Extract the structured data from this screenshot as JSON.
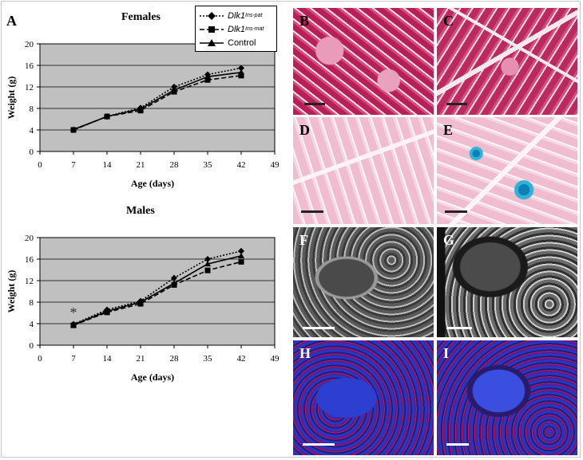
{
  "figure": {
    "panel_A_label": "A",
    "micrograph_labels": [
      "B",
      "C",
      "D",
      "E",
      "F",
      "G",
      "H",
      "I"
    ],
    "legend": {
      "pat_prefix": "Dlk1",
      "pat_sup": "Ins-pat",
      "mat_prefix": "Dlk1",
      "mat_sup": "Ins-mat",
      "control": "Control"
    },
    "colors": {
      "plot_bg": "#c0c0c0",
      "he_stain": "#c8306a",
      "pale_stain": "#f3c7d8",
      "blue_stain": "#19a9cf",
      "fluor_red": "#b8186a",
      "fluor_blue": "#2233c8"
    }
  },
  "chart_data": [
    {
      "type": "line",
      "title": "Females",
      "xlabel": "Age (days)",
      "ylabel": "Weight (g)",
      "xlim": [
        0,
        49
      ],
      "ylim": [
        0,
        20
      ],
      "xticks": [
        0,
        7,
        14,
        21,
        28,
        35,
        42,
        49
      ],
      "yticks": [
        0,
        4,
        8,
        12,
        16,
        20
      ],
      "grid": true,
      "x": [
        7,
        14,
        21,
        28,
        35,
        42
      ],
      "series": [
        {
          "name": "Dlk1 Ins-pat",
          "marker": "diamond",
          "dash": "dotted",
          "values": [
            4.0,
            6.5,
            8.1,
            12.0,
            14.3,
            15.5
          ]
        },
        {
          "name": "Dlk1 Ins-mat",
          "marker": "square",
          "dash": "dashed",
          "values": [
            4.0,
            6.5,
            7.6,
            11.1,
            13.3,
            14.1
          ]
        },
        {
          "name": "Control",
          "marker": "triangle",
          "dash": "solid",
          "values": [
            4.1,
            6.5,
            7.9,
            11.4,
            13.9,
            14.7
          ]
        }
      ],
      "annotations": []
    },
    {
      "type": "line",
      "title": "Males",
      "xlabel": "Age (days)",
      "ylabel": "Weight (g)",
      "xlim": [
        0,
        49
      ],
      "ylim": [
        0,
        20
      ],
      "xticks": [
        0,
        7,
        14,
        21,
        28,
        35,
        42,
        49
      ],
      "yticks": [
        0,
        4,
        8,
        12,
        16,
        20
      ],
      "grid": true,
      "x": [
        7,
        14,
        21,
        28,
        35,
        42
      ],
      "series": [
        {
          "name": "Dlk1 Ins-pat",
          "marker": "diamond",
          "dash": "dotted",
          "values": [
            3.9,
            6.6,
            8.2,
            12.5,
            16.0,
            17.5
          ]
        },
        {
          "name": "Dlk1 Ins-mat",
          "marker": "square",
          "dash": "dashed",
          "values": [
            3.7,
            6.1,
            7.7,
            11.2,
            13.9,
            15.5
          ]
        },
        {
          "name": "Control",
          "marker": "triangle",
          "dash": "solid",
          "values": [
            3.8,
            6.3,
            8.0,
            11.5,
            15.1,
            16.6
          ]
        }
      ],
      "annotations": [
        {
          "text": "*",
          "x": 7,
          "y": 5.2
        }
      ]
    }
  ]
}
